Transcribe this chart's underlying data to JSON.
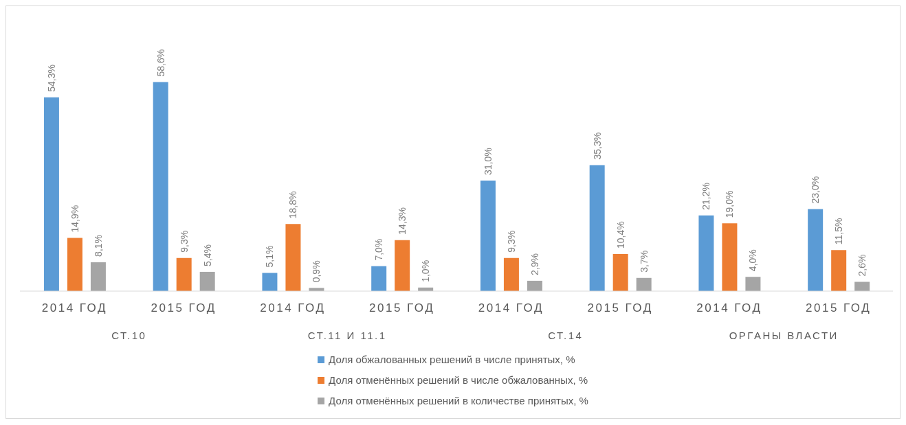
{
  "chart_data": {
    "type": "bar",
    "categories": [
      "2014 ГОД",
      "2015 ГОД",
      "2014 ГОД",
      "2015 ГОД",
      "2014 ГОД",
      "2015 ГОД",
      "2014 ГОД",
      "2015 ГОД"
    ],
    "annotations": [
      "СТ.10",
      "СТ.11 И 11.1",
      "СТ.14",
      "ОРГАНЫ ВЛАСТИ"
    ],
    "series": [
      {
        "name": "Доля обжалованных решений в числе принятых, %",
        "color": "#5b9bd5",
        "values": [
          54.3,
          58.6,
          5.1,
          7.0,
          31.0,
          35.3,
          21.2,
          23.0
        ],
        "value_labels": [
          "54,3%",
          "58,6%",
          "5,1%",
          "7,0%",
          "31,0%",
          "35,3%",
          "21,2%",
          "23,0%"
        ]
      },
      {
        "name": "Доля отменённых решений в числе обжалованных, %",
        "color": "#ed7d31",
        "values": [
          14.9,
          9.3,
          18.8,
          14.3,
          9.3,
          10.4,
          19.0,
          11.5
        ],
        "value_labels": [
          "14,9%",
          "9,3%",
          "18,8%",
          "14,3%",
          "9,3%",
          "10,4%",
          "19,0%",
          "11,5%"
        ]
      },
      {
        "name": "Доля отменённых решений в количестве принятых, %",
        "color": "#a5a5a5",
        "values": [
          8.1,
          5.4,
          0.9,
          1.0,
          2.9,
          3.7,
          4.0,
          2.6
        ],
        "value_labels": [
          "8,1%",
          "5,4%",
          "0,9%",
          "1,0%",
          "2,9%",
          "3,7%",
          "4,0%",
          "2,6%"
        ]
      }
    ],
    "legend": "bottom",
    "grid": false
  }
}
